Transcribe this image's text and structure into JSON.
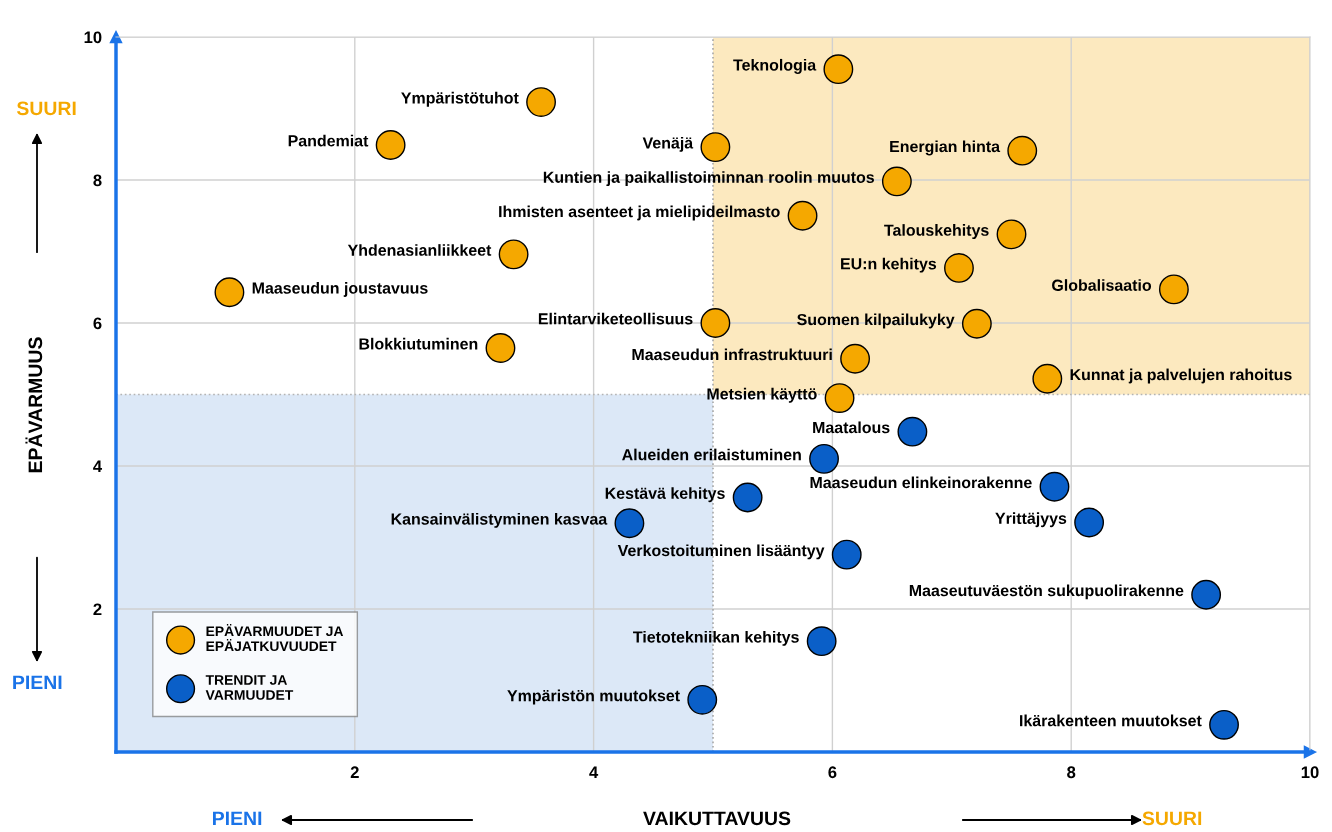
{
  "chart_data": {
    "type": "scatter",
    "xlabel": "VAIKUTTAVUUS",
    "ylabel": "EPÄVARMUUS",
    "xlim": [
      0,
      10
    ],
    "ylim": [
      0,
      10
    ],
    "xticks": [
      2,
      4,
      6,
      8,
      10
    ],
    "yticks": [
      2,
      4,
      6,
      8,
      10
    ],
    "grid": true,
    "legend": "bottom left",
    "marker": "circle",
    "series": [
      {
        "name": "EPÄVARMUUDET JA EPÄJATKUVUUDET",
        "color": "#f5a800",
        "x": [
          6.05,
          3.56,
          2.3,
          5.02,
          7.59,
          6.54,
          5.75,
          7.5,
          3.33,
          7.06,
          0.95,
          8.86,
          5.02,
          7.21,
          3.22,
          6.19,
          7.8,
          6.06
        ],
        "values": [
          9.55,
          9.09,
          8.49,
          8.46,
          8.41,
          7.98,
          7.5,
          7.24,
          6.96,
          6.77,
          6.43,
          6.47,
          6.0,
          5.99,
          5.65,
          5.5,
          5.22,
          4.95
        ]
      },
      {
        "name": "TRENDIT JA VARMUUDET",
        "color": "#0a5fc8",
        "x": [
          6.67,
          5.93,
          7.86,
          5.29,
          4.3,
          8.15,
          6.12,
          9.13,
          5.91,
          4.91,
          9.28
        ],
        "values": [
          4.48,
          4.1,
          3.71,
          3.56,
          3.2,
          3.21,
          2.76,
          2.2,
          1.55,
          0.73,
          0.38
        ]
      }
    ],
    "ref_lines": [
      {
        "axis": "x",
        "value": 5,
        "line_style": "dotted",
        "color": "#aaaaaa"
      },
      {
        "axis": "y",
        "value": 5,
        "line_style": "dotted",
        "color": "#b4b4b4"
      }
    ],
    "annotations": [
      {
        "text": "Teknologia",
        "x": 6.05,
        "y": 9.55
      },
      {
        "text": "Ympäristötuhot",
        "x": 3.56,
        "y": 9.09
      },
      {
        "text": "Pandemiat",
        "x": 2.3,
        "y": 8.49
      },
      {
        "text": "Venäjä",
        "x": 5.02,
        "y": 8.46
      },
      {
        "text": "Energian hinta",
        "x": 7.59,
        "y": 8.41
      },
      {
        "text": "Kuntien ja paikallistoiminnan roolin muutos",
        "x": 6.54,
        "y": 7.98
      },
      {
        "text": "Ihmisten asenteet ja mielipideilmasto",
        "x": 5.75,
        "y": 7.5
      },
      {
        "text": "Talouskehitys",
        "x": 7.5,
        "y": 7.24
      },
      {
        "text": "Yhdenasianliikkeet",
        "x": 3.33,
        "y": 6.96
      },
      {
        "text": "EU:n kehitys",
        "x": 7.06,
        "y": 6.77
      },
      {
        "text": "Maaseudun joustavuus",
        "x": 0.95,
        "y": 6.43
      },
      {
        "text": "Globalisaatio",
        "x": 8.86,
        "y": 6.47
      },
      {
        "text": "Elintarviketeollisuus",
        "x": 5.02,
        "y": 6.0
      },
      {
        "text": "Suomen kilpailukyky",
        "x": 7.21,
        "y": 5.99
      },
      {
        "text": "Blokkiutuminen",
        "x": 3.22,
        "y": 5.65
      },
      {
        "text": "Maaseudun infrastruktuuri",
        "x": 6.19,
        "y": 5.5
      },
      {
        "text": "Kunnat ja palvelujen rahoitus",
        "x": 7.8,
        "y": 5.22
      },
      {
        "text": "Metsien käyttö",
        "x": 6.06,
        "y": 4.95
      },
      {
        "text": "Maatalous",
        "x": 6.67,
        "y": 4.48
      },
      {
        "text": "Alueiden erilaistuminen",
        "x": 5.93,
        "y": 4.1
      },
      {
        "text": "Maaseudun elinkeinorakenne",
        "x": 7.86,
        "y": 3.71
      },
      {
        "text": "Kestävä kehitys",
        "x": 5.29,
        "y": 3.56
      },
      {
        "text": "Kansainvälistyminen kasvaa",
        "x": 4.3,
        "y": 3.2
      },
      {
        "text": "Yrittäjyys",
        "x": 8.15,
        "y": 3.21
      },
      {
        "text": "Verkostoituminen lisääntyy",
        "x": 6.12,
        "y": 2.76
      },
      {
        "text": "Maaseutuväestön sukupuolirakenne",
        "x": 9.13,
        "y": 2.2
      },
      {
        "text": "Tietotekniikan kehitys",
        "x": 5.91,
        "y": 1.55
      },
      {
        "text": "Ympäristön muutokset",
        "x": 4.91,
        "y": 0.73
      },
      {
        "text": "Ikärakenteen muutokset",
        "x": 9.28,
        "y": 0.38
      },
      "SUURI",
      "PIENI",
      "PIENI",
      "SUURI"
    ]
  }
}
